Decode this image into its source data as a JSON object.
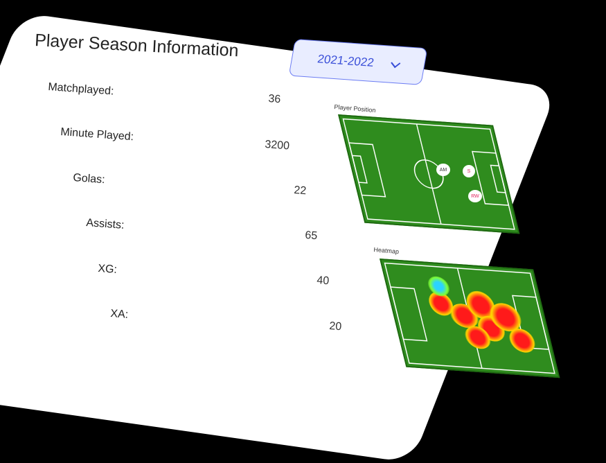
{
  "header": {
    "title": "Player Season Information",
    "season_selected": "2021-2022"
  },
  "stats": [
    {
      "label": "Matchplayed:",
      "value": "36"
    },
    {
      "label": "Minute Played:",
      "value": "3200"
    },
    {
      "label": "Golas:",
      "value": "22"
    },
    {
      "label": "Assists:",
      "value": "65"
    },
    {
      "label": "XG:",
      "value": "40"
    },
    {
      "label": "XA:",
      "value": "20"
    }
  ],
  "position_panel": {
    "title": "Player Position",
    "markers": [
      "AM",
      "S",
      "RW"
    ]
  },
  "heatmap_panel": {
    "title": "Heatmap"
  },
  "colors": {
    "pitch": "#2f8c1e",
    "select_border": "#6b7cf3",
    "select_text": "#3a4fd8",
    "marker_text": "#e0245e"
  }
}
